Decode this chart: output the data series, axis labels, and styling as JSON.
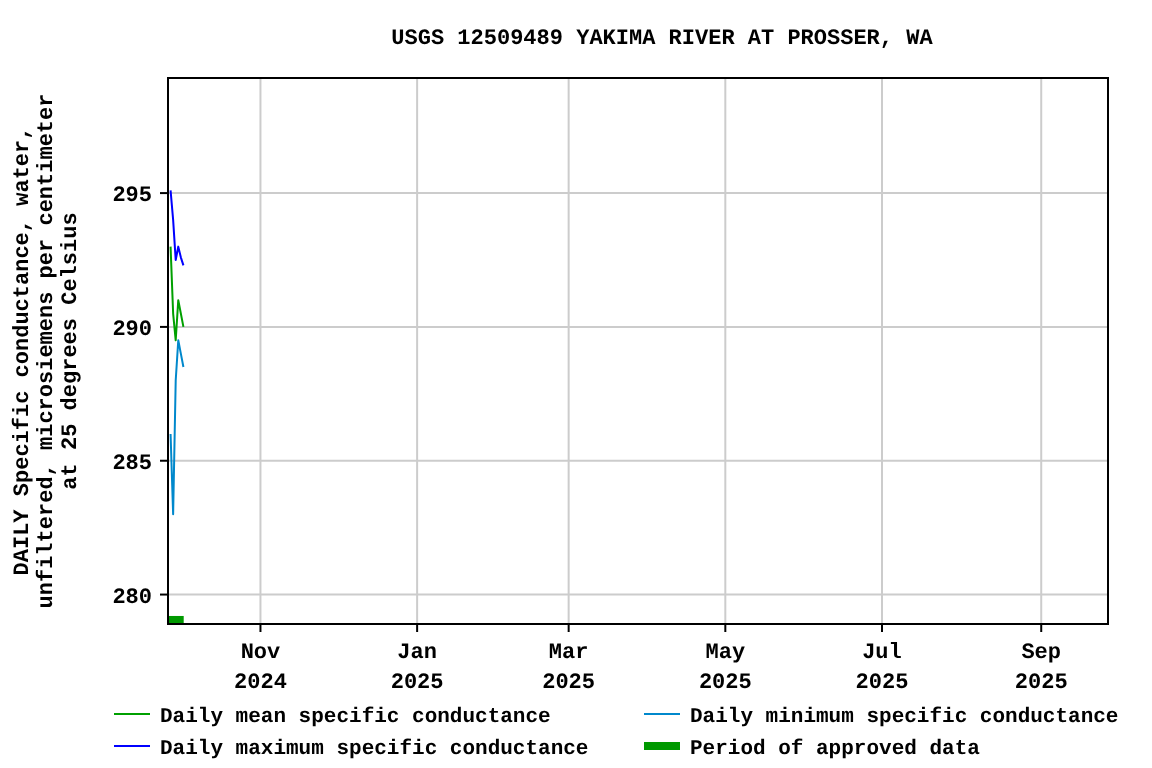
{
  "chart_data": {
    "type": "line",
    "title": "USGS 12509489 YAKIMA RIVER AT PROSSER, WA",
    "ylabel": "DAILY Specific conductance, water,\nunfiltered, microsiemens per centimeter\nat 25 degrees Celsius",
    "x": [
      "2024-09-27",
      "2024-09-28",
      "2024-09-29",
      "2024-09-30",
      "2024-10-01",
      "2024-10-02"
    ],
    "series": [
      {
        "name": "Daily mean specific conductance",
        "color": "#00a000",
        "values": [
          293.0,
          290.5,
          289.5,
          291.0,
          290.5,
          290.0
        ]
      },
      {
        "name": "Daily maximum specific conductance",
        "color": "#0000ff",
        "values": [
          295.1,
          294.0,
          292.5,
          293.0,
          292.6,
          292.3
        ]
      },
      {
        "name": "Daily minimum specific conductance",
        "color": "#0088cc",
        "values": [
          286.0,
          283.0,
          288.0,
          289.5,
          289.0,
          288.5
        ]
      },
      {
        "name": "Period of approved data",
        "color": "#009900",
        "type": "bar",
        "x": [
          "2024-09-29"
        ],
        "values": [
          279.2
        ]
      }
    ],
    "xlim": [
      "2024-09-26",
      "2025-09-27"
    ],
    "xticks": [
      {
        "value": "2024-11-01",
        "label": "Nov\n2024"
      },
      {
        "value": "2025-01-01",
        "label": "Jan\n2025"
      },
      {
        "value": "2025-03-01",
        "label": "Mar\n2025"
      },
      {
        "value": "2025-05-01",
        "label": "May\n2025"
      },
      {
        "value": "2025-07-01",
        "label": "Jul\n2025"
      },
      {
        "value": "2025-09-01",
        "label": "Sep\n2025"
      }
    ],
    "ylim": [
      278.9,
      299.3
    ],
    "yticks": [
      280,
      285,
      290,
      295
    ],
    "grid": true,
    "legend": "bottom"
  }
}
